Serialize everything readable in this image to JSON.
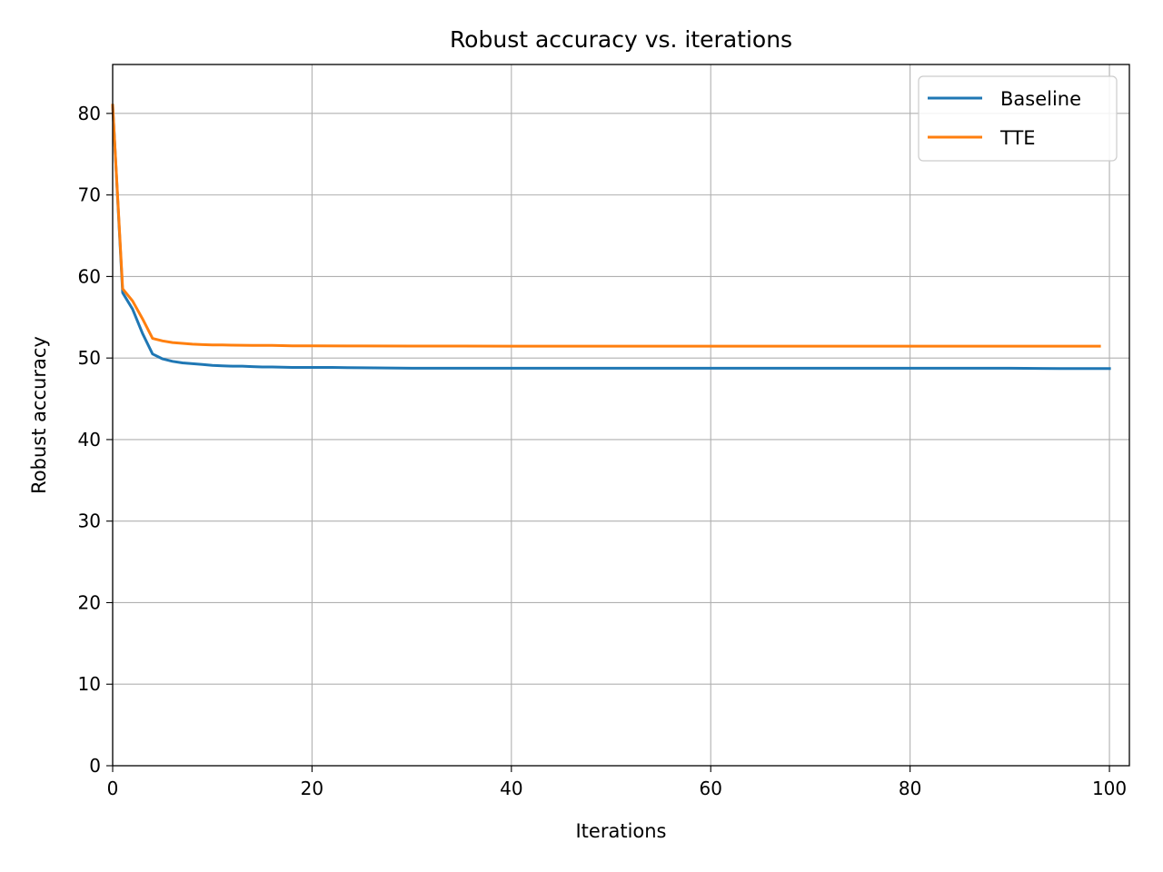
{
  "chart_data": {
    "type": "line",
    "title": "Robust accuracy vs. iterations",
    "xlabel": "Iterations",
    "ylabel": "Robust accuracy",
    "xlim": [
      0,
      102
    ],
    "ylim": [
      0,
      86
    ],
    "xticks": [
      0,
      20,
      40,
      60,
      80,
      100
    ],
    "yticks": [
      0,
      10,
      20,
      30,
      40,
      50,
      60,
      70,
      80
    ],
    "grid": true,
    "legend_position": "top-right",
    "series": [
      {
        "name": "Baseline",
        "color": "#1f77b4",
        "x": [
          0,
          1,
          2,
          3,
          4,
          5,
          6,
          7,
          8,
          9,
          10,
          11,
          12,
          13,
          14,
          15,
          16,
          18,
          20,
          22,
          25,
          30,
          35,
          40,
          45,
          50,
          55,
          60,
          65,
          70,
          75,
          80,
          85,
          90,
          95,
          100
        ],
        "y": [
          81,
          58,
          56,
          53,
          50.5,
          49.9,
          49.6,
          49.4,
          49.3,
          49.2,
          49.1,
          49.05,
          49.0,
          49.0,
          48.95,
          48.9,
          48.9,
          48.85,
          48.85,
          48.85,
          48.8,
          48.75,
          48.75,
          48.75,
          48.75,
          48.75,
          48.75,
          48.75,
          48.75,
          48.75,
          48.75,
          48.75,
          48.75,
          48.75,
          48.7,
          48.7
        ]
      },
      {
        "name": "TTE",
        "color": "#ff7f0e",
        "x": [
          0,
          1,
          2,
          3,
          4,
          5,
          6,
          7,
          8,
          9,
          10,
          11,
          12,
          14,
          16,
          18,
          20,
          25,
          30,
          35,
          40,
          45,
          50,
          55,
          60,
          65,
          70,
          75,
          80,
          85,
          90,
          95,
          99
        ],
        "y": [
          81,
          58.5,
          57,
          54.8,
          52.4,
          52.1,
          51.9,
          51.8,
          51.7,
          51.65,
          51.6,
          51.6,
          51.58,
          51.55,
          51.55,
          51.5,
          51.5,
          51.48,
          51.47,
          51.47,
          51.46,
          51.46,
          51.46,
          51.46,
          51.46,
          51.45,
          51.45,
          51.45,
          51.45,
          51.45,
          51.45,
          51.45,
          51.45
        ]
      }
    ]
  }
}
